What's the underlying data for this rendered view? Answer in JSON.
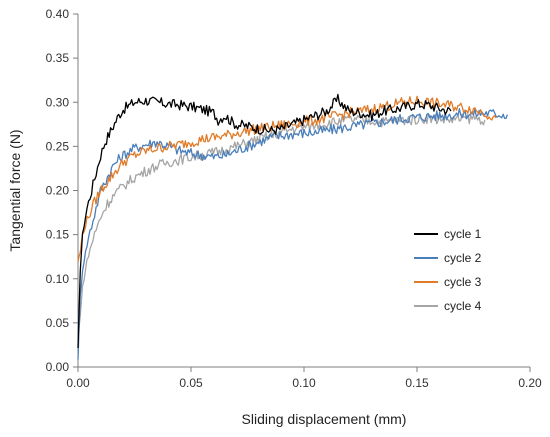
{
  "chart_data": {
    "type": "line",
    "xlabel": "Sliding displacement  (mm)",
    "ylabel": "Tangential force (N)",
    "xlim": [
      0,
      0.2
    ],
    "ylim": [
      0,
      0.4
    ],
    "xticks": [
      "0.00",
      "0.05",
      "0.10",
      "0.15",
      "0.20"
    ],
    "yticks": [
      "0.00",
      "0.05",
      "0.10",
      "0.15",
      "0.20",
      "0.25",
      "0.30",
      "0.35",
      "0.40"
    ],
    "grid": false,
    "legend_position": "right",
    "series": [
      {
        "name": "cycle 1",
        "color": "#000000",
        "x": [
          0,
          0.001,
          0.002,
          0.004,
          0.006,
          0.008,
          0.01,
          0.012,
          0.015,
          0.018,
          0.02,
          0.025,
          0.03,
          0.035,
          0.04,
          0.045,
          0.05,
          0.055,
          0.06,
          0.062,
          0.065,
          0.068,
          0.07,
          0.075,
          0.08,
          0.085,
          0.09,
          0.095,
          0.1,
          0.105,
          0.11,
          0.113,
          0.115,
          0.118,
          0.12,
          0.125,
          0.13,
          0.135,
          0.14,
          0.145,
          0.15,
          0.155,
          0.16,
          0.165
        ],
        "y": [
          0.02,
          0.11,
          0.15,
          0.18,
          0.2,
          0.22,
          0.24,
          0.255,
          0.27,
          0.285,
          0.292,
          0.3,
          0.302,
          0.3,
          0.298,
          0.297,
          0.295,
          0.292,
          0.288,
          0.28,
          0.285,
          0.278,
          0.275,
          0.273,
          0.27,
          0.268,
          0.27,
          0.275,
          0.28,
          0.285,
          0.29,
          0.298,
          0.303,
          0.295,
          0.29,
          0.288,
          0.285,
          0.29,
          0.292,
          0.295,
          0.298,
          0.297,
          0.293,
          0.29
        ]
      },
      {
        "name": "cycle 2",
        "color": "#4a7ebb",
        "x": [
          0,
          0.001,
          0.002,
          0.004,
          0.006,
          0.008,
          0.01,
          0.013,
          0.016,
          0.02,
          0.025,
          0.03,
          0.035,
          0.04,
          0.045,
          0.05,
          0.055,
          0.06,
          0.065,
          0.07,
          0.075,
          0.08,
          0.085,
          0.09,
          0.095,
          0.1,
          0.105,
          0.11,
          0.115,
          0.12,
          0.125,
          0.13,
          0.135,
          0.14,
          0.145,
          0.15,
          0.155,
          0.16,
          0.165,
          0.17,
          0.175,
          0.18,
          0.185,
          0.19
        ],
        "y": [
          0.01,
          0.08,
          0.11,
          0.14,
          0.16,
          0.18,
          0.2,
          0.215,
          0.23,
          0.24,
          0.248,
          0.252,
          0.255,
          0.25,
          0.245,
          0.242,
          0.24,
          0.238,
          0.24,
          0.245,
          0.25,
          0.255,
          0.26,
          0.262,
          0.264,
          0.265,
          0.266,
          0.268,
          0.27,
          0.272,
          0.274,
          0.276,
          0.278,
          0.28,
          0.282,
          0.283,
          0.284,
          0.285,
          0.286,
          0.287,
          0.287,
          0.288,
          0.287,
          0.286
        ]
      },
      {
        "name": "cycle 3",
        "color": "#e07b2a",
        "x": [
          0,
          0.001,
          0.002,
          0.004,
          0.006,
          0.008,
          0.01,
          0.013,
          0.016,
          0.02,
          0.025,
          0.03,
          0.035,
          0.04,
          0.045,
          0.05,
          0.055,
          0.06,
          0.065,
          0.07,
          0.075,
          0.08,
          0.085,
          0.09,
          0.095,
          0.1,
          0.105,
          0.11,
          0.115,
          0.12,
          0.125,
          0.13,
          0.135,
          0.14,
          0.145,
          0.15,
          0.155,
          0.16,
          0.165,
          0.17,
          0.175,
          0.18,
          0.185
        ],
        "y": [
          0.12,
          0.13,
          0.15,
          0.165,
          0.18,
          0.19,
          0.2,
          0.21,
          0.22,
          0.232,
          0.24,
          0.245,
          0.248,
          0.25,
          0.252,
          0.255,
          0.258,
          0.26,
          0.262,
          0.265,
          0.268,
          0.27,
          0.272,
          0.274,
          0.276,
          0.278,
          0.28,
          0.282,
          0.285,
          0.288,
          0.29,
          0.292,
          0.295,
          0.298,
          0.3,
          0.302,
          0.3,
          0.298,
          0.296,
          0.294,
          0.292,
          0.288,
          0.282
        ]
      },
      {
        "name": "cycle 4",
        "color": "#a5a5a5",
        "x": [
          0,
          0.001,
          0.002,
          0.004,
          0.006,
          0.008,
          0.01,
          0.013,
          0.016,
          0.02,
          0.025,
          0.03,
          0.035,
          0.04,
          0.045,
          0.05,
          0.055,
          0.06,
          0.065,
          0.07,
          0.075,
          0.08,
          0.085,
          0.09,
          0.095,
          0.1,
          0.105,
          0.11,
          0.115,
          0.12,
          0.125,
          0.13,
          0.135,
          0.14,
          0.145,
          0.15,
          0.155,
          0.16,
          0.165,
          0.17,
          0.175,
          0.18
        ],
        "y": [
          0.03,
          0.06,
          0.09,
          0.12,
          0.14,
          0.155,
          0.17,
          0.185,
          0.195,
          0.205,
          0.215,
          0.222,
          0.228,
          0.232,
          0.235,
          0.238,
          0.24,
          0.243,
          0.246,
          0.25,
          0.254,
          0.258,
          0.262,
          0.266,
          0.27,
          0.272,
          0.274,
          0.276,
          0.278,
          0.28,
          0.28,
          0.279,
          0.278,
          0.279,
          0.28,
          0.281,
          0.282,
          0.281,
          0.28,
          0.281,
          0.282,
          0.28
        ]
      }
    ]
  }
}
